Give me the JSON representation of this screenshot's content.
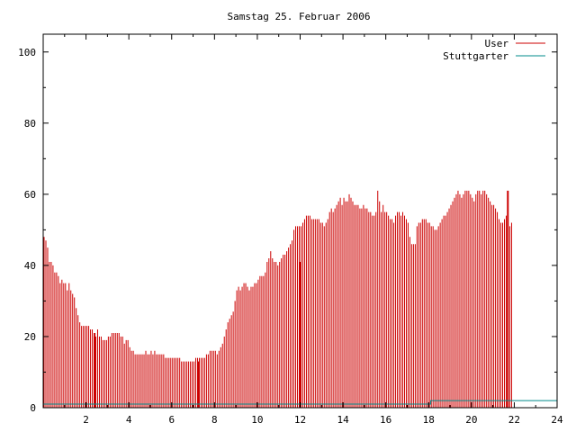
{
  "chart_data": {
    "type": "bar",
    "title": "Samstag 25. Februar 2006",
    "xlabel": "",
    "ylabel": "",
    "xlim": [
      0,
      24
    ],
    "ylim": [
      0,
      105
    ],
    "xticks": [
      2,
      4,
      6,
      8,
      10,
      12,
      14,
      16,
      18,
      20,
      22,
      24
    ],
    "yticks": [
      0,
      20,
      40,
      60,
      80,
      100
    ],
    "grid": false,
    "legend_position": "top-right",
    "colors": {
      "user": "#cc0000",
      "stuttgarter": "#008b8b",
      "axis": "#000000"
    },
    "series": [
      {
        "name": "User",
        "style": "impulses",
        "x_step_hours": 0.08333,
        "values": [
          48,
          47,
          45,
          41,
          41,
          40,
          38,
          38,
          37,
          35,
          36,
          35,
          35,
          33,
          35,
          33,
          32,
          31,
          28,
          26,
          24,
          23,
          23,
          23,
          23,
          23,
          22,
          22,
          20,
          20,
          22,
          20,
          20,
          19,
          19,
          19,
          20,
          20,
          21,
          21,
          21,
          21,
          21,
          20,
          20,
          18,
          19,
          19,
          17,
          16,
          16,
          15,
          15,
          15,
          15,
          15,
          15,
          16,
          15,
          15,
          16,
          15,
          16,
          15,
          15,
          15,
          15,
          15,
          14,
          14,
          14,
          14,
          14,
          14,
          14,
          14,
          14,
          13,
          13,
          13,
          13,
          13,
          13,
          13,
          13,
          14,
          14,
          14,
          14,
          14,
          14,
          15,
          15,
          16,
          16,
          16,
          16,
          15,
          16,
          17,
          18,
          20,
          22,
          24,
          25,
          26,
          27,
          30,
          33,
          34,
          33,
          34,
          35,
          35,
          34,
          33,
          34,
          34,
          35,
          35,
          36,
          37,
          37,
          37,
          38,
          41,
          42,
          44,
          42,
          41,
          41,
          40,
          41,
          42,
          43,
          43,
          44,
          45,
          46,
          47,
          50,
          51,
          51,
          51,
          51,
          52,
          53,
          54,
          54,
          54,
          53,
          53,
          53,
          53,
          53,
          52,
          52,
          51,
          52,
          53,
          55,
          56,
          55,
          56,
          57,
          58,
          59,
          57,
          59,
          58,
          58,
          60,
          59,
          58,
          57,
          57,
          57,
          56,
          56,
          57,
          56,
          56,
          55,
          55,
          54,
          54,
          55,
          61,
          58,
          55,
          57,
          55,
          55,
          54,
          53,
          53,
          52,
          54,
          55,
          55,
          54,
          55,
          54,
          53,
          52,
          48,
          46,
          46,
          46,
          51,
          52,
          52,
          53,
          53,
          53,
          52,
          52,
          51,
          51,
          50,
          50,
          51,
          52,
          53,
          54,
          54,
          55,
          56,
          57,
          58,
          59,
          60,
          61,
          60,
          59,
          60,
          61,
          61,
          61,
          60,
          59,
          58,
          60,
          61,
          61,
          60,
          61,
          61,
          60,
          59,
          58,
          57,
          57,
          56,
          55,
          53,
          52,
          52,
          53,
          54,
          52,
          51,
          52
        ],
        "markers": [
          {
            "x": 2.4,
            "value": 21
          },
          {
            "x": 7.25,
            "value": 13
          },
          {
            "x": 12.0,
            "value": 41
          },
          {
            "x": 21.7,
            "value": 61
          }
        ]
      },
      {
        "name": "Stuttgarter",
        "style": "line",
        "points": [
          [
            0,
            1
          ],
          [
            18.1,
            1
          ],
          [
            18.1,
            2
          ],
          [
            24,
            2
          ]
        ]
      }
    ]
  }
}
